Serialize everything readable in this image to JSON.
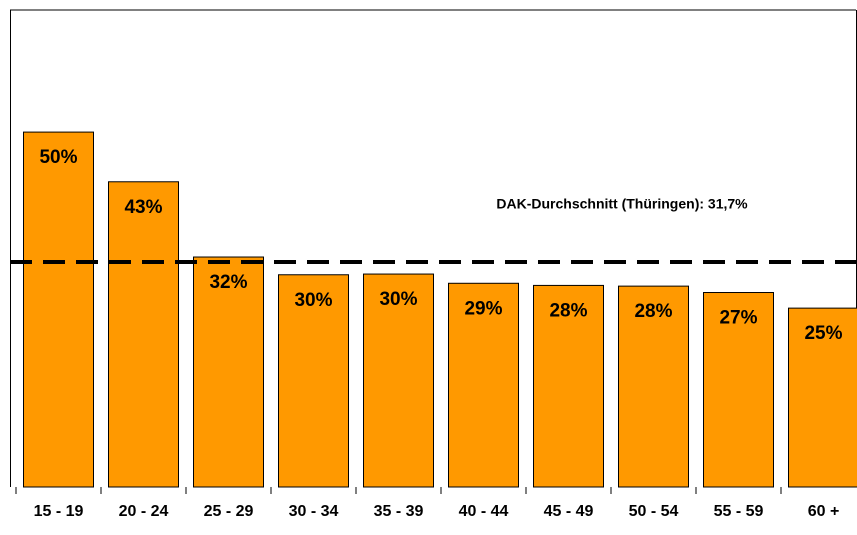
{
  "chart_data": {
    "type": "bar",
    "categories": [
      "15 - 19",
      "20 - 24",
      "25 - 29",
      "30 - 34",
      "35 - 39",
      "40 - 44",
      "45 - 49",
      "50 - 54",
      "55 - 59",
      "60 +"
    ],
    "values": [
      50,
      43,
      32.4,
      29.9,
      30.0,
      28.7,
      28.4,
      28.3,
      27.4,
      25.2
    ],
    "value_labels": [
      "50%",
      "43%",
      "32%",
      "30%",
      "30%",
      "29%",
      "28%",
      "28%",
      "27%",
      "25%"
    ],
    "color": "#ff9900",
    "ylim": [
      0,
      67.2
    ],
    "reference_line": {
      "value": 31.7,
      "label": "DAK-Durchschnitt (Thüringen): 31,7%"
    }
  }
}
